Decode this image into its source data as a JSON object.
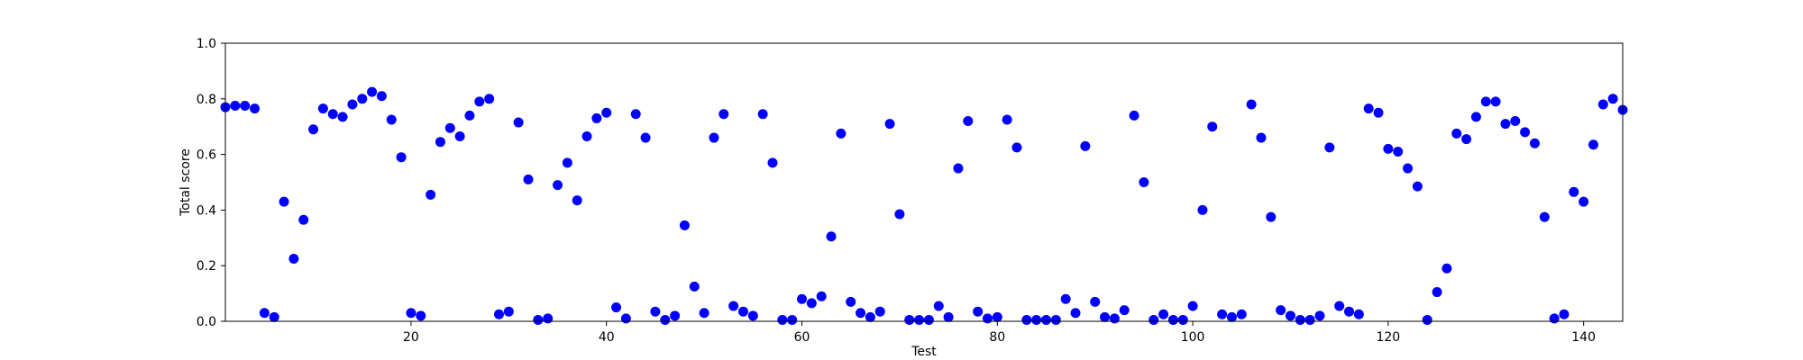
{
  "chart_data": {
    "type": "scatter",
    "title": "",
    "xlabel": "Test",
    "ylabel": "Total score",
    "xlim": [
      1,
      144
    ],
    "ylim": [
      0,
      1
    ],
    "xticks": [
      20,
      40,
      60,
      80,
      100,
      120,
      140
    ],
    "yticks": [
      0.0,
      0.2,
      0.4,
      0.6,
      0.8,
      1.0
    ],
    "ytick_labels": [
      "0.0",
      "0.2",
      "0.4",
      "0.6",
      "0.8",
      "1.0"
    ],
    "grid": false,
    "marker_color": "#0000ff",
    "x": [
      1,
      2,
      3,
      4,
      5,
      6,
      7,
      8,
      9,
      10,
      11,
      12,
      13,
      14,
      15,
      16,
      17,
      18,
      19,
      20,
      21,
      22,
      23,
      24,
      25,
      26,
      27,
      28,
      29,
      30,
      31,
      32,
      33,
      34,
      35,
      36,
      37,
      38,
      39,
      40,
      41,
      42,
      43,
      44,
      45,
      46,
      47,
      48,
      49,
      50,
      51,
      52,
      53,
      54,
      55,
      56,
      57,
      58,
      59,
      60,
      61,
      62,
      63,
      64,
      65,
      66,
      67,
      68,
      69,
      70,
      71,
      72,
      73,
      74,
      75,
      76,
      77,
      78,
      79,
      80,
      81,
      82,
      83,
      84,
      85,
      86,
      87,
      88,
      89,
      90,
      91,
      92,
      93,
      94,
      95,
      96,
      97,
      98,
      99,
      100,
      101,
      102,
      103,
      104,
      105,
      106,
      107,
      108,
      109,
      110,
      111,
      112,
      113,
      114,
      115,
      116,
      117,
      118,
      119,
      120,
      121,
      122,
      123,
      124,
      125,
      126,
      127,
      128,
      129,
      130,
      131,
      132,
      133,
      134,
      135,
      136,
      137,
      138,
      139,
      140,
      141,
      142,
      143,
      144
    ],
    "y": [
      0.77,
      0.775,
      0.775,
      0.765,
      0.03,
      0.015,
      0.43,
      0.225,
      0.365,
      0.69,
      0.765,
      0.745,
      0.735,
      0.78,
      0.8,
      0.825,
      0.81,
      0.725,
      0.59,
      0.03,
      0.02,
      0.455,
      0.645,
      0.695,
      0.665,
      0.74,
      0.79,
      0.8,
      0.025,
      0.035,
      0.715,
      0.51,
      0.005,
      0.01,
      0.49,
      0.57,
      0.435,
      0.665,
      0.73,
      0.75,
      0.05,
      0.01,
      0.745,
      0.66,
      0.035,
      0.005,
      0.02,
      0.345,
      0.125,
      0.03,
      0.66,
      0.745,
      0.055,
      0.035,
      0.02,
      0.745,
      0.57,
      0.005,
      0.005,
      0.08,
      0.065,
      0.09,
      0.305,
      0.675,
      0.07,
      0.03,
      0.015,
      0.035,
      0.71,
      0.385,
      0.005,
      0.005,
      0.005,
      0.055,
      0.015,
      0.55,
      0.72,
      0.035,
      0.01,
      0.015,
      0.725,
      0.625,
      0.005,
      0.005,
      0.005,
      0.005,
      0.08,
      0.03,
      0.63,
      0.07,
      0.015,
      0.01,
      0.04,
      0.74,
      0.5,
      0.005,
      0.025,
      0.005,
      0.005,
      0.055,
      0.4,
      0.7,
      0.025,
      0.015,
      0.025,
      0.78,
      0.66,
      0.375,
      0.04,
      0.02,
      0.005,
      0.005,
      0.02,
      0.625,
      0.055,
      0.035,
      0.025,
      0.765,
      0.75,
      0.62,
      0.61,
      0.55,
      0.485,
      0.005,
      0.105,
      0.19,
      0.675,
      0.655,
      0.735,
      0.79,
      0.79,
      0.71,
      0.72,
      0.68,
      0.64,
      0.375,
      0.01,
      0.025,
      0.465,
      0.43,
      0.635,
      0.78,
      0.8,
      0.76
    ]
  }
}
